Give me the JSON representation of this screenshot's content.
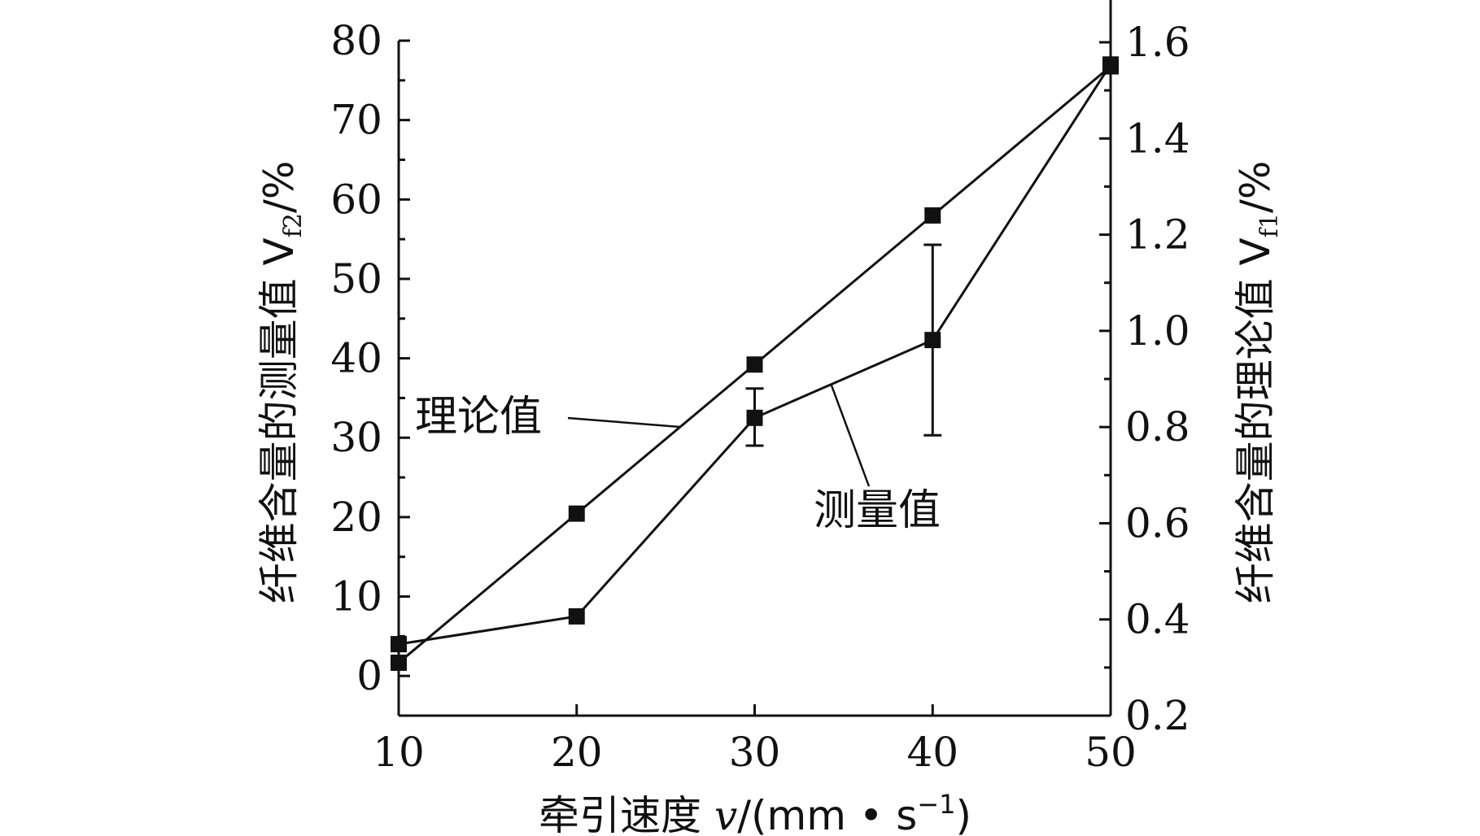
{
  "chart_data": {
    "type": "line",
    "x": [
      10,
      20,
      30,
      40,
      50
    ],
    "x_ticks": [
      "10",
      "20",
      "30",
      "40",
      "50"
    ],
    "xlim": [
      10,
      50
    ],
    "xlabel": {
      "main": "牵引速度 ",
      "var": "v",
      "unit_open": "/(mm • s",
      "sup": "−1",
      "unit_close": ")"
    },
    "y_left": {
      "label": {
        "main": "纤维含量的测量值 V",
        "sub": "f2",
        "tail": "/%"
      },
      "ylim": [
        -5,
        80
      ],
      "ticks": [
        "0",
        "10",
        "20",
        "30",
        "40",
        "50",
        "60",
        "70",
        "80"
      ],
      "tick_values": [
        0,
        10,
        20,
        30,
        40,
        50,
        60,
        70,
        80
      ]
    },
    "y_right": {
      "label": {
        "main": "纤维含量的理论值 V",
        "sub": "f1",
        "tail": "/%"
      },
      "ylim": [
        0.2,
        1.7
      ],
      "ticks": [
        "0.2",
        "0.4",
        "0.6",
        "0.8",
        "1.0",
        "1.2",
        "1.4",
        "1.6"
      ],
      "tick_values": [
        0.2,
        0.4,
        0.6,
        0.8,
        1.0,
        1.2,
        1.4,
        1.6
      ]
    },
    "series": [
      {
        "name": "理论值",
        "axis": "right",
        "values": [
          0.31,
          0.62,
          0.93,
          1.24,
          1.55
        ]
      },
      {
        "name": "测量值",
        "axis": "left",
        "values": [
          4.0,
          7.5,
          32.5,
          42.3,
          77.0
        ],
        "error_low": [
          null,
          null,
          29.0,
          30.3,
          null
        ],
        "error_high": [
          null,
          null,
          36.2,
          54.3,
          null
        ]
      }
    ],
    "annotations": [
      {
        "text": "理论值",
        "series": "理论值"
      },
      {
        "text": "测量值",
        "series": "测量值"
      }
    ],
    "grid": false,
    "legend": "none"
  }
}
